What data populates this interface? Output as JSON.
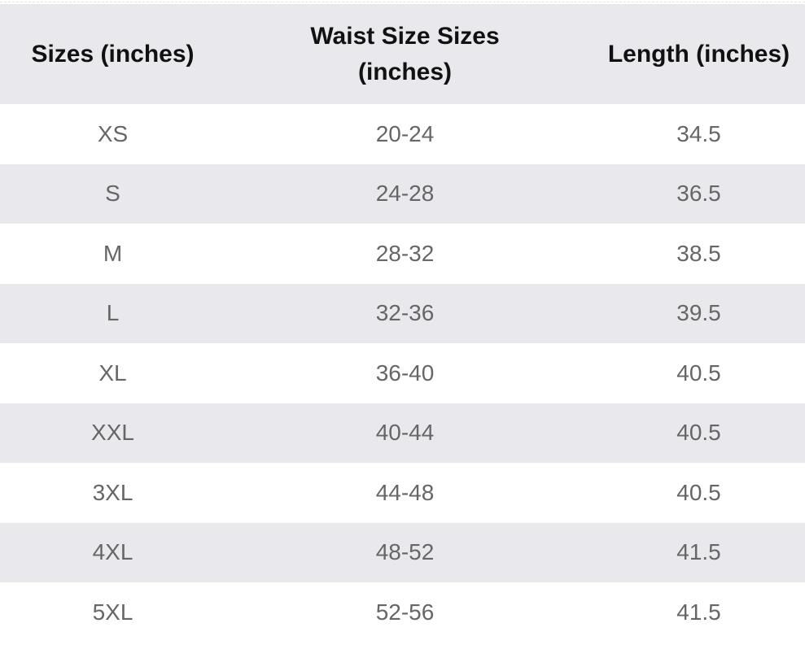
{
  "table": {
    "header": [
      "Sizes (inches)",
      "Waist Size Sizes (inches)",
      "Length (inches)"
    ],
    "rows": [
      [
        "XS",
        "20-24",
        "34.5"
      ],
      [
        "S",
        "24-28",
        "36.5"
      ],
      [
        "M",
        "28-32",
        "38.5"
      ],
      [
        "L",
        "32-36",
        "39.5"
      ],
      [
        "XL",
        "36-40",
        "40.5"
      ],
      [
        "XXL",
        "40-44",
        "40.5"
      ],
      [
        "3XL",
        "44-48",
        "40.5"
      ],
      [
        "4XL",
        "48-52",
        "41.5"
      ],
      [
        "5XL",
        "52-56",
        "41.5"
      ]
    ]
  }
}
